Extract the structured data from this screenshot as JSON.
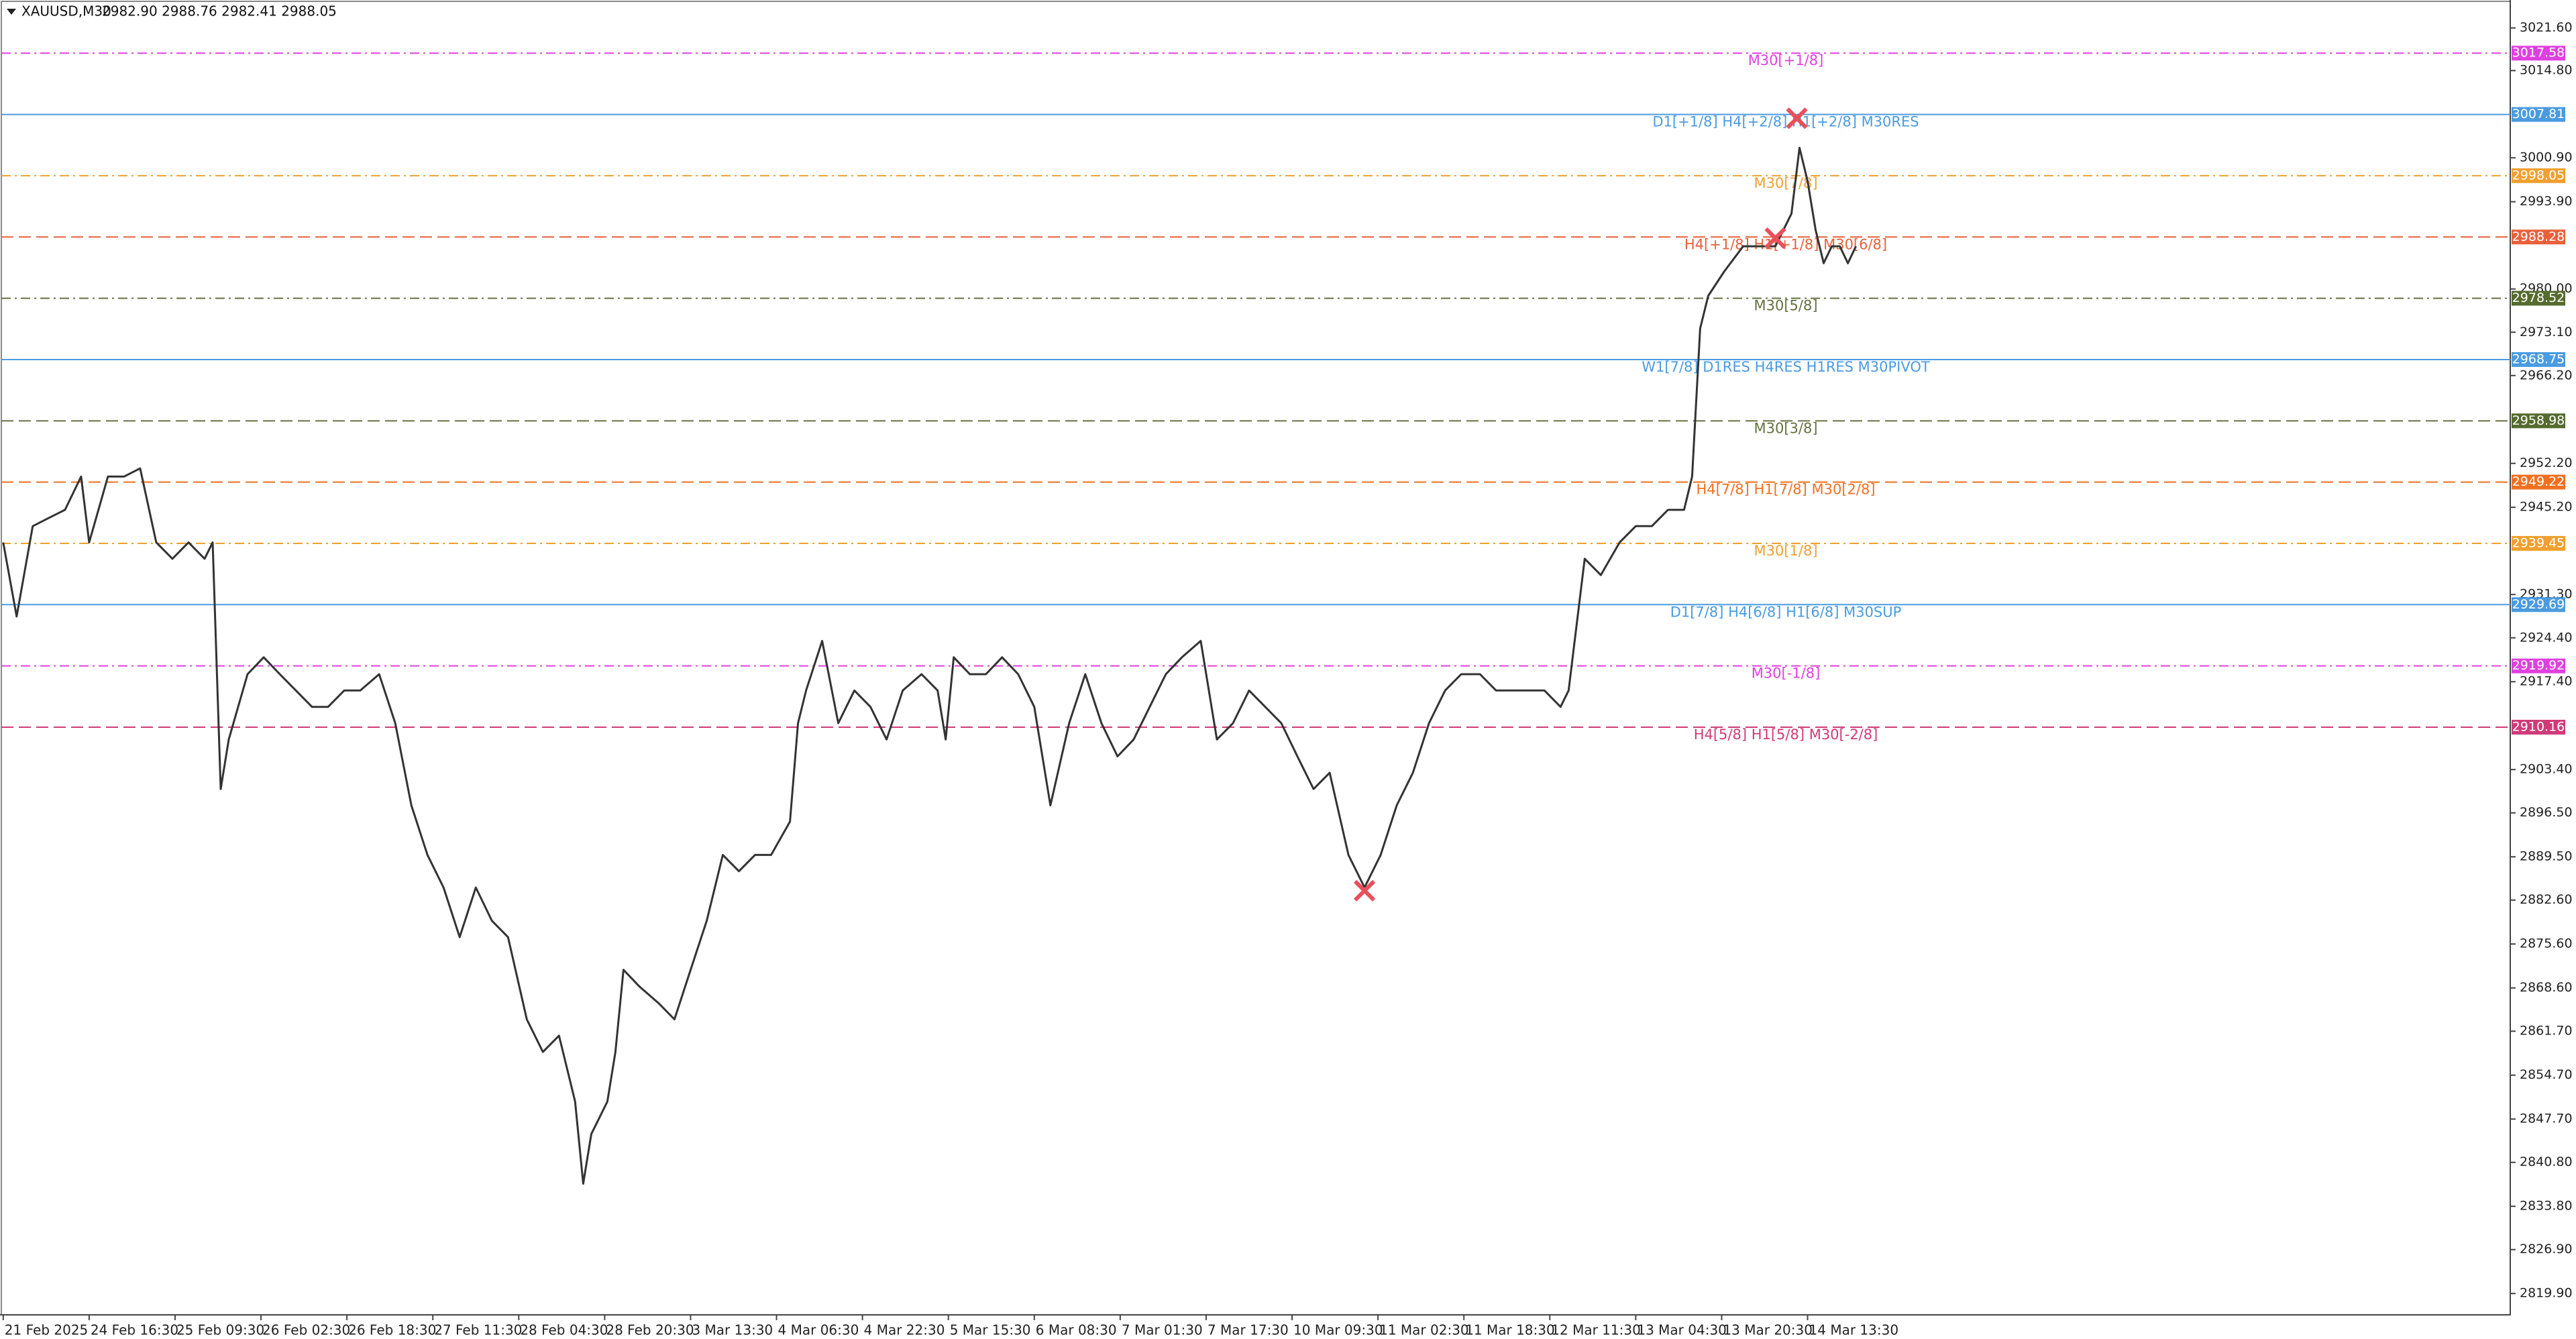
{
  "chart_data": {
    "type": "line",
    "title": "XAUUSD,M30",
    "subtitle": "2982.90 2988.76 2982.41 2988.05",
    "color": "#333333",
    "x": [
      0,
      5,
      11,
      17,
      23,
      29,
      32,
      39,
      45,
      51,
      57,
      63,
      69,
      75,
      78,
      81,
      84,
      91,
      97,
      103,
      109,
      115,
      121,
      127,
      133,
      140,
      146,
      152,
      158,
      164,
      170,
      176,
      182,
      188,
      195,
      201,
      207,
      213,
      216,
      219,
      225,
      228,
      231,
      237,
      244,
      250,
      256,
      262,
      268,
      274,
      280,
      286,
      293,
      296,
      299,
      305,
      311,
      317,
      323,
      329,
      335,
      342,
      348,
      351,
      354,
      360,
      366,
      372,
      378,
      384,
      390,
      397,
      403,
      409,
      415,
      421,
      427,
      433,
      439,
      446,
      452,
      458,
      464,
      470,
      476,
      482,
      488,
      494,
      501,
      507,
      513,
      519,
      525,
      531,
      537,
      543,
      550,
      556,
      562,
      568,
      574,
      580,
      583,
      586,
      589,
      595,
      602,
      608,
      614,
      620,
      626,
      629,
      632,
      635,
      641,
      648,
      654,
      660,
      666,
      669,
      672,
      675,
      678,
      681,
      684,
      687,
      690
    ],
    "values": [
      2939.6,
      2927.8,
      2942.2,
      2943.5,
      2944.8,
      2950.1,
      2939.6,
      2950.1,
      2950.1,
      2951.4,
      2939.6,
      2937.0,
      2939.6,
      2937.0,
      2939.6,
      2900.3,
      2908.2,
      2918.6,
      2921.3,
      2918.6,
      2916.0,
      2913.4,
      2913.4,
      2916.0,
      2916.0,
      2918.6,
      2910.8,
      2897.7,
      2889.8,
      2884.6,
      2876.7,
      2884.6,
      2879.3,
      2876.7,
      2863.6,
      2858.4,
      2861.0,
      2850.5,
      2837.4,
      2845.3,
      2850.5,
      2858.4,
      2871.5,
      2868.8,
      2866.2,
      2863.6,
      2871.5,
      2879.3,
      2889.8,
      2887.2,
      2889.8,
      2889.8,
      2895.1,
      2910.8,
      2916.0,
      2923.9,
      2910.8,
      2916.0,
      2913.4,
      2908.2,
      2916.0,
      2918.6,
      2916.0,
      2908.2,
      2921.3,
      2918.6,
      2918.6,
      2921.3,
      2918.6,
      2913.4,
      2897.7,
      2910.8,
      2918.6,
      2910.8,
      2905.5,
      2908.2,
      2913.4,
      2918.6,
      2921.3,
      2923.9,
      2908.2,
      2910.8,
      2916.0,
      2913.4,
      2910.8,
      2905.5,
      2900.3,
      2902.9,
      2889.8,
      2884.6,
      2889.8,
      2897.7,
      2902.9,
      2910.8,
      2916.0,
      2918.6,
      2918.6,
      2916.0,
      2916.0,
      2916.0,
      2916.0,
      2913.4,
      2916.0,
      2926.5,
      2937.0,
      2934.4,
      2939.6,
      2942.2,
      2942.2,
      2944.8,
      2944.8,
      2950.1,
      2973.7,
      2978.9,
      2982.8,
      2986.8,
      2986.8,
      2986.8,
      2992.0,
      3002.5,
      2997.2,
      2989.4,
      2984.1,
      2986.8,
      2986.8,
      2984.1,
      2986.8
    ],
    "signals": {
      "color": "#e8505a",
      "x": [
        668,
        660,
        507
      ],
      "values": [
        3007.2,
        2988.1,
        2884.1
      ]
    },
    "xlim": [
      -1.2,
      933.7
    ],
    "ylim": [
      2816.5,
      3026.05
    ],
    "xticks": [
      {
        "value": 0,
        "label": "21 Feb 2025"
      },
      {
        "value": 32,
        "label": "24 Feb 16:30"
      },
      {
        "value": 64,
        "label": "25 Feb 09:30"
      },
      {
        "value": 96,
        "label": "26 Feb 02:30"
      },
      {
        "value": 128,
        "label": "26 Feb 18:30"
      },
      {
        "value": 160,
        "label": "27 Feb 11:30"
      },
      {
        "value": 192,
        "label": "28 Feb 04:30"
      },
      {
        "value": 224,
        "label": "28 Feb 20:30"
      },
      {
        "value": 256,
        "label": "3 Mar 13:30"
      },
      {
        "value": 288,
        "label": "4 Mar 06:30"
      },
      {
        "value": 320,
        "label": "4 Mar 22:30"
      },
      {
        "value": 352,
        "label": "5 Mar 15:30"
      },
      {
        "value": 384,
        "label": "6 Mar 08:30"
      },
      {
        "value": 416,
        "label": "7 Mar 01:30"
      },
      {
        "value": 448,
        "label": "7 Mar 17:30"
      },
      {
        "value": 480,
        "label": "10 Mar 09:30"
      },
      {
        "value": 512,
        "label": "11 Mar 02:30"
      },
      {
        "value": 544,
        "label": "11 Mar 18:30"
      },
      {
        "value": 576,
        "label": "12 Mar 11:30"
      },
      {
        "value": 608,
        "label": "13 Mar 04:30"
      },
      {
        "value": 640,
        "label": "13 Mar 20:30"
      },
      {
        "value": 672,
        "label": "14 Mar 13:30"
      }
    ],
    "yticks": [
      {
        "value": 3021.6,
        "label": "3021.60"
      },
      {
        "value": 3014.8,
        "label": "3014.80"
      },
      {
        "value": 3000.9,
        "label": "3000.90"
      },
      {
        "value": 2993.9,
        "label": "2993.90"
      },
      {
        "value": 2980,
        "label": "2980.00"
      },
      {
        "value": 2973.1,
        "label": "2973.10"
      },
      {
        "value": 2966.2,
        "label": "2966.20"
      },
      {
        "value": 2952.2,
        "label": "2952.20"
      },
      {
        "value": 2945.2,
        "label": "2945.20"
      },
      {
        "value": 2931.3,
        "label": "2931.30"
      },
      {
        "value": 2924.4,
        "label": "2924.40"
      },
      {
        "value": 2917.4,
        "label": "2917.40"
      },
      {
        "value": 2903.4,
        "label": "2903.40"
      },
      {
        "value": 2896.5,
        "label": "2896.50"
      },
      {
        "value": 2889.5,
        "label": "2889.50"
      },
      {
        "value": 2882.6,
        "label": "2882.60"
      },
      {
        "value": 2875.6,
        "label": "2875.60"
      },
      {
        "value": 2868.6,
        "label": "2868.60"
      },
      {
        "value": 2861.7,
        "label": "2861.70"
      },
      {
        "value": 2854.7,
        "label": "2854.70"
      },
      {
        "value": 2847.7,
        "label": "2847.70"
      },
      {
        "value": 2840.8,
        "label": "2840.80"
      },
      {
        "value": 2833.8,
        "label": "2833.80"
      },
      {
        "value": 2826.9,
        "label": "2826.90"
      },
      {
        "value": 2819.9,
        "label": "2819.90"
      }
    ],
    "levels": [
      {
        "value": 3017.58,
        "label": "M30[+1/8]",
        "color": "#e040e0",
        "box": "#e040e0",
        "dash": "dashdot"
      },
      {
        "value": 3007.81,
        "label": "D1[+1/8] H4[+2/8] H1[+2/8] M30RES",
        "color": "#4a9be0",
        "box": "#4a9be0",
        "dash": "solid"
      },
      {
        "value": 2998.05,
        "label": "M30[7/8]",
        "color": "#f0a030",
        "box": "#f0a030",
        "dash": "dashdot"
      },
      {
        "value": 2988.28,
        "label": "H4[+1/8] H1[+1/8] M30[6/8]",
        "color": "#e8603a",
        "box": "#e8603a",
        "dash": "dashed"
      },
      {
        "value": 2978.52,
        "label": "M30[5/8]",
        "color": "#667040",
        "box": "#556b2f",
        "dash": "dashdot"
      },
      {
        "value": 2968.75,
        "label": "W1[7/8] D1RES H4RES H1RES M30PIVOT",
        "color": "#4a9be0",
        "box": "#4a9be0",
        "dash": "solid"
      },
      {
        "value": 2958.98,
        "label": "M30[3/8]",
        "color": "#667040",
        "box": "#556b2f",
        "dash": "dashed"
      },
      {
        "value": 2949.22,
        "label": "H4[7/8] H1[7/8] M30[2/8]",
        "color": "#f07020",
        "box": "#f07020",
        "dash": "dashed"
      },
      {
        "value": 2939.45,
        "label": "M30[1/8]",
        "color": "#f0a030",
        "box": "#f0a030",
        "dash": "dashdot"
      },
      {
        "value": 2929.69,
        "label": "D1[7/8] H4[6/8] H1[6/8] M30SUP",
        "color": "#4a9be0",
        "box": "#4a9be0",
        "dash": "solid"
      },
      {
        "value": 2919.92,
        "label": "M30[-1/8]",
        "color": "#e040e0",
        "box": "#e040e0",
        "dash": "dashdot"
      },
      {
        "value": 2910.16,
        "label": "H4[5/8] H1[5/8] M30[-2/8]",
        "color": "#d03a78",
        "box": "#d03a78",
        "dash": "dashed"
      }
    ]
  }
}
